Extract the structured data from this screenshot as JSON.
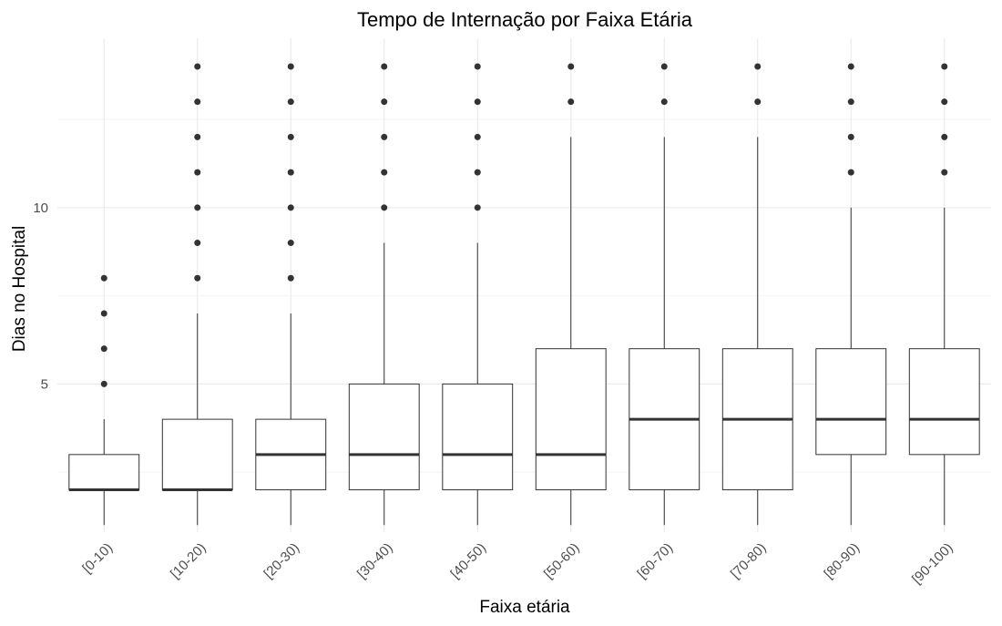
{
  "chart_data": {
    "type": "box",
    "title": "Tempo de Internação por Faixa Etária",
    "xlabel": "Faixa etária",
    "ylabel": "Dias no Hospital",
    "ylim": [
      0.8,
      14.8
    ],
    "yticks": [
      5,
      10
    ],
    "grid": true,
    "categories": [
      "[0-10)",
      "[10-20)",
      "[20-30)",
      "[30-40)",
      "[40-50)",
      "[50-60)",
      "[60-70)",
      "[70-80)",
      "[80-90)",
      "[90-100)"
    ],
    "boxes": [
      {
        "whisker_low": 1,
        "q1": 2,
        "median": 2,
        "q3": 3,
        "whisker_high": 4,
        "outliers": [
          5,
          6,
          7,
          8
        ]
      },
      {
        "whisker_low": 1,
        "q1": 2,
        "median": 2,
        "q3": 4,
        "whisker_high": 7,
        "outliers": [
          8,
          9,
          10,
          11,
          12,
          13,
          14
        ]
      },
      {
        "whisker_low": 1,
        "q1": 2,
        "median": 3,
        "q3": 4,
        "whisker_high": 7,
        "outliers": [
          8,
          9,
          10,
          11,
          12,
          13,
          14
        ]
      },
      {
        "whisker_low": 1,
        "q1": 2,
        "median": 3,
        "q3": 5,
        "whisker_high": 9,
        "outliers": [
          10,
          11,
          12,
          13,
          14
        ]
      },
      {
        "whisker_low": 1,
        "q1": 2,
        "median": 3,
        "q3": 5,
        "whisker_high": 9,
        "outliers": [
          10,
          11,
          12,
          13,
          14
        ]
      },
      {
        "whisker_low": 1,
        "q1": 2,
        "median": 3,
        "q3": 6,
        "whisker_high": 12,
        "outliers": [
          13,
          14
        ]
      },
      {
        "whisker_low": 1,
        "q1": 2,
        "median": 4,
        "q3": 6,
        "whisker_high": 12,
        "outliers": [
          13,
          14
        ]
      },
      {
        "whisker_low": 1,
        "q1": 2,
        "median": 4,
        "q3": 6,
        "whisker_high": 12,
        "outliers": [
          13,
          14
        ]
      },
      {
        "whisker_low": 1,
        "q1": 3,
        "median": 4,
        "q3": 6,
        "whisker_high": 10,
        "outliers": [
          11,
          12,
          13,
          14
        ]
      },
      {
        "whisker_low": 1,
        "q1": 3,
        "median": 4,
        "q3": 6,
        "whisker_high": 10,
        "outliers": [
          11,
          12,
          13,
          14
        ]
      }
    ],
    "colors": {
      "box_fill": "#ffffff",
      "box_line": "#333333",
      "median": "#333333",
      "outlier": "#333333",
      "grid_major": "#ebebeb",
      "grid_minor": "#f4f4f4"
    }
  }
}
